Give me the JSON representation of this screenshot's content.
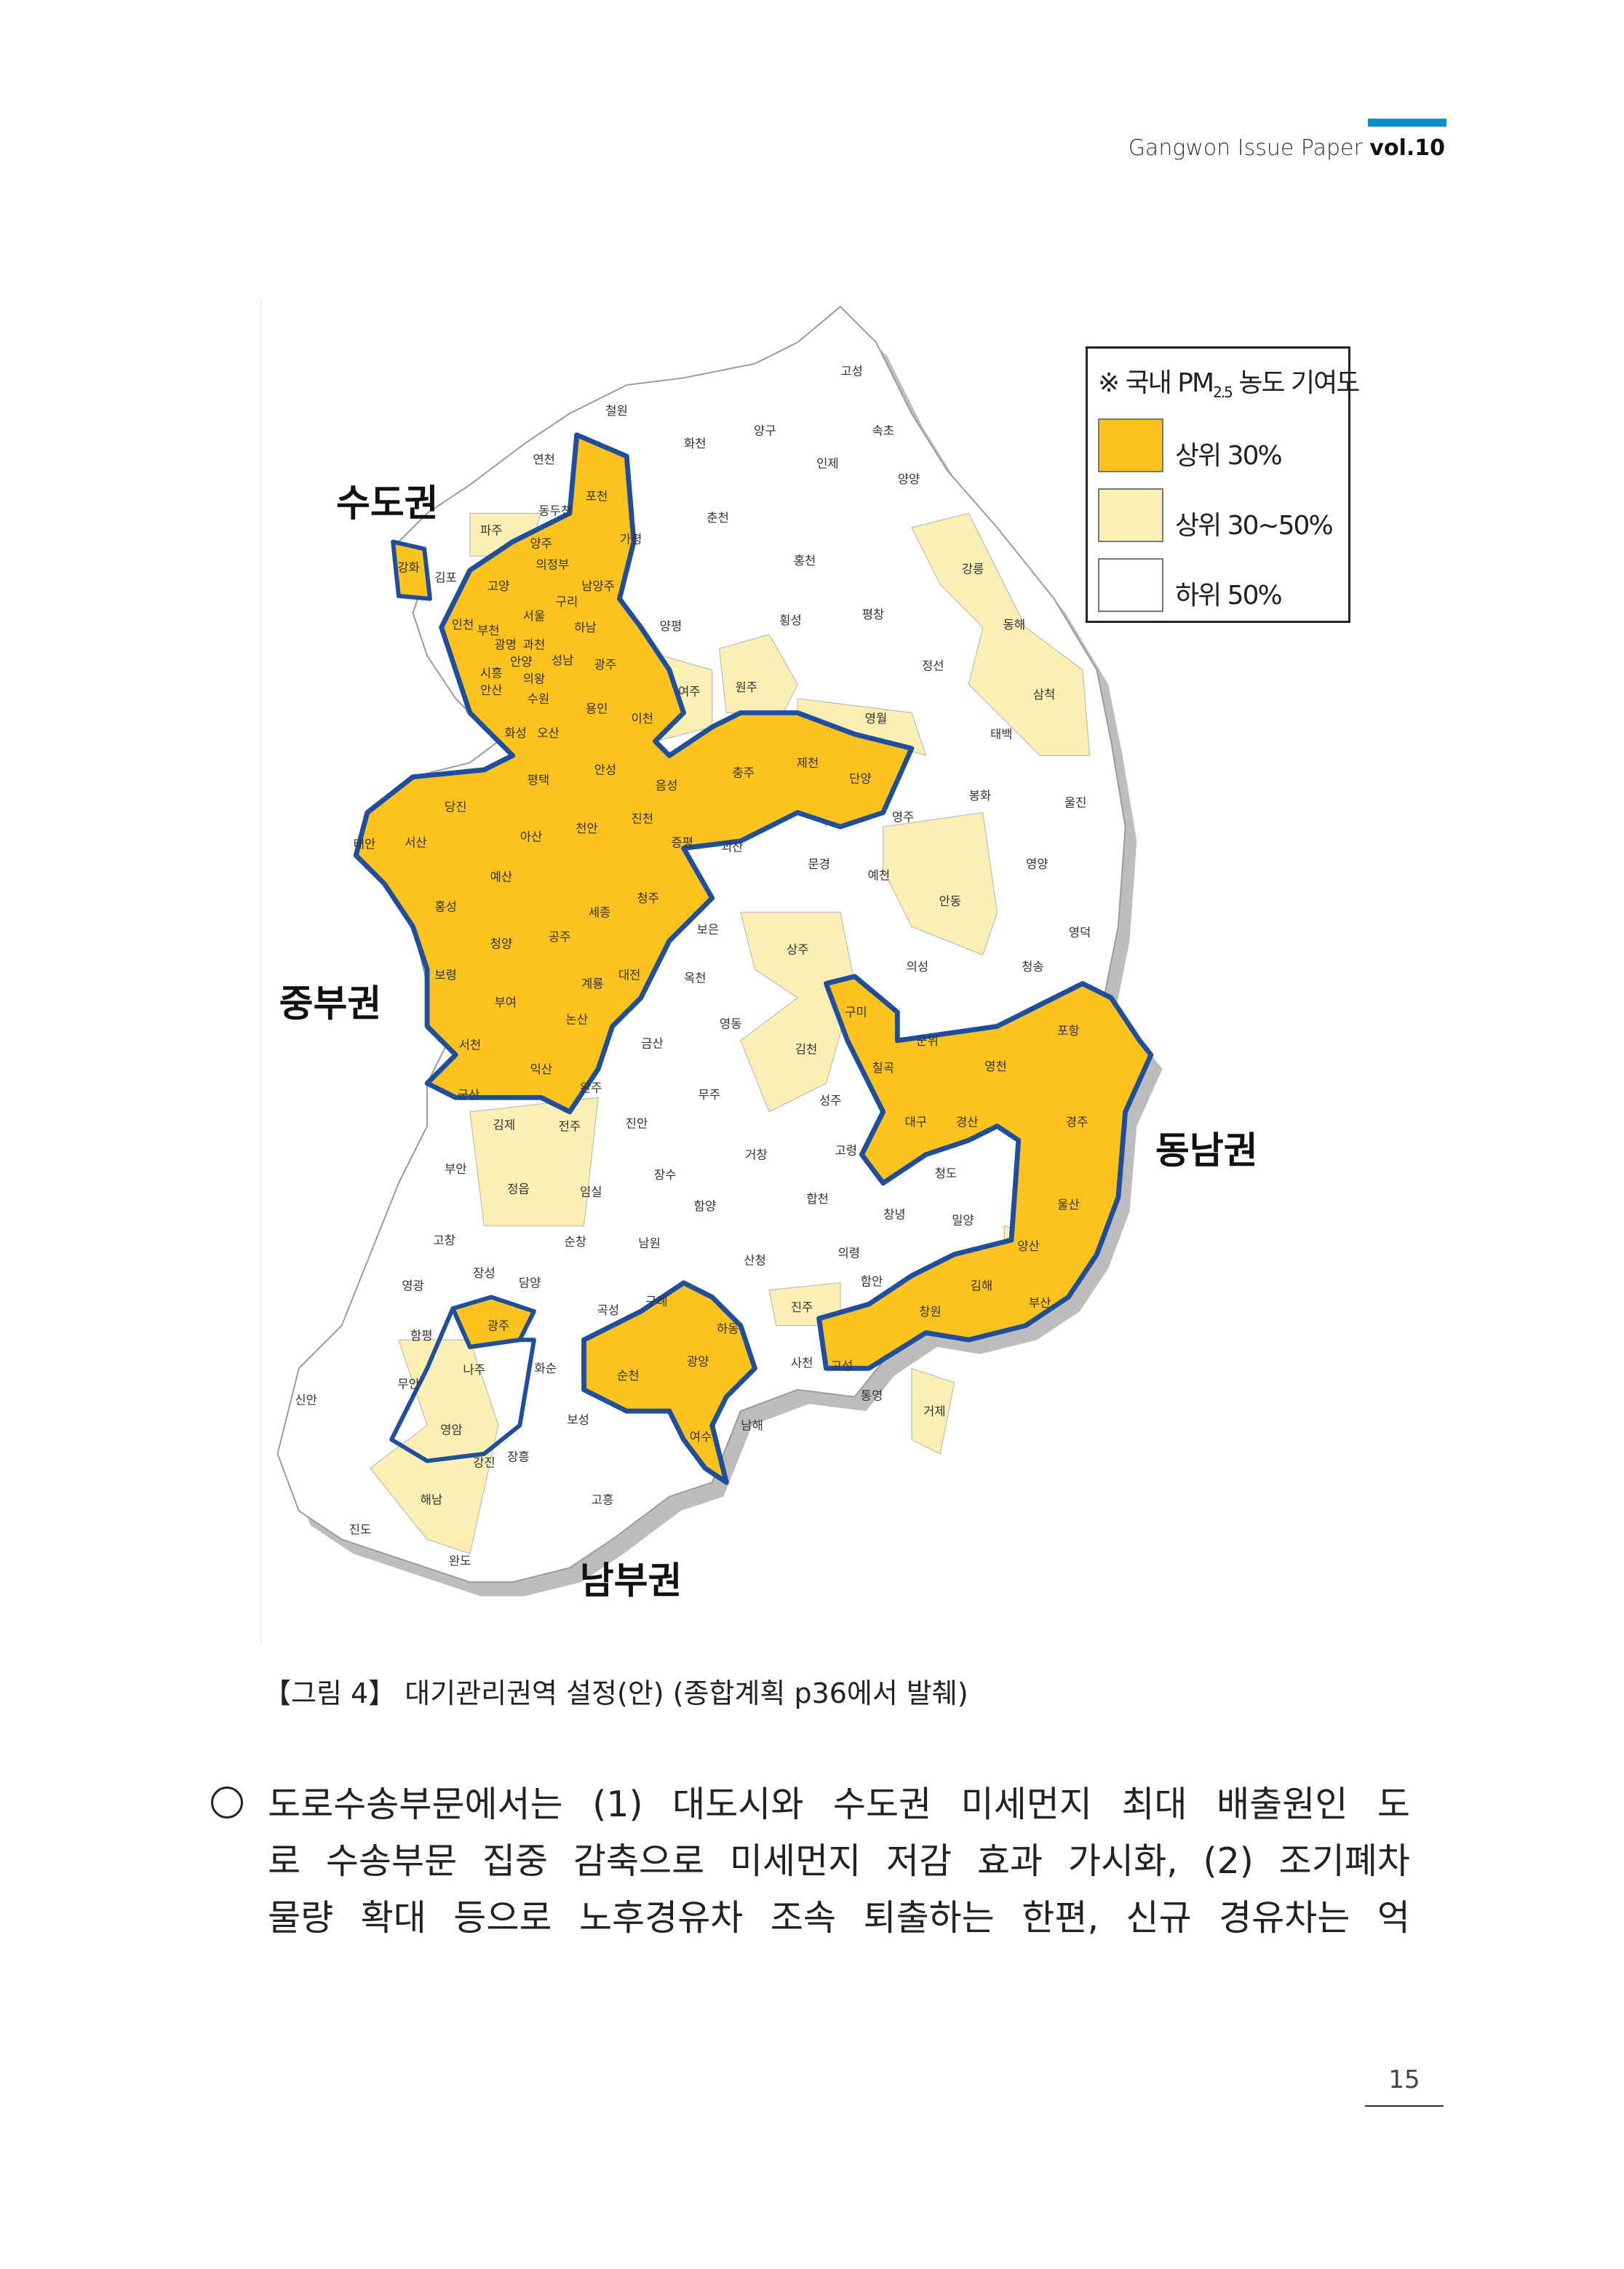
{
  "header": {
    "publication": "Gangwon Issue Paper",
    "volume": "vol.10",
    "accent_color": "#0a8fd3"
  },
  "map": {
    "legend": {
      "title_prefix": "※ 국내 PM",
      "title_sub": "2.5",
      "title_suffix": " 농도 기여도",
      "items": [
        {
          "label": "상위 30%",
          "color": "#fcc31e"
        },
        {
          "label": "상위 30~50%",
          "color": "#faf0b4"
        },
        {
          "label": "하위 50%",
          "color": "#ffffff"
        }
      ]
    },
    "zone_outline_color": "#1f4e9c",
    "regions": [
      "수도권",
      "중부권",
      "동남권",
      "남부권"
    ],
    "city_labels": [
      "고성",
      "철원",
      "화천",
      "양구",
      "속초",
      "연천",
      "인제",
      "양양",
      "포천",
      "파주",
      "동두천",
      "양주",
      "가평",
      "춘천",
      "강화",
      "김포",
      "의정부",
      "고양",
      "남양주",
      "홍천",
      "강릉",
      "서울",
      "구리",
      "인천",
      "부천",
      "하남",
      "양평",
      "횡성",
      "평창",
      "동해",
      "광명",
      "과천",
      "성남",
      "광주",
      "안양",
      "의왕",
      "시흥",
      "안산",
      "정선",
      "수원",
      "용인",
      "이천",
      "여주",
      "원주",
      "영월",
      "삼척",
      "화성",
      "오산",
      "태백",
      "안성",
      "평택",
      "음성",
      "충주",
      "제천",
      "단양",
      "봉화",
      "울진",
      "당진",
      "진천",
      "영주",
      "태안",
      "서산",
      "아산",
      "천안",
      "괴산",
      "증평",
      "문경",
      "예천",
      "영양",
      "예산",
      "청주",
      "안동",
      "홍성",
      "세종",
      "공주",
      "보은",
      "영덕",
      "상주",
      "청양",
      "의성",
      "청송",
      "보령",
      "대전",
      "옥천",
      "계룡",
      "부여",
      "논산",
      "영동",
      "구미",
      "군위",
      "포항",
      "금산",
      "김천",
      "서천",
      "익산",
      "칠곡",
      "영천",
      "완주",
      "무주",
      "성주",
      "군산",
      "대구",
      "경산",
      "경주",
      "김제",
      "전주",
      "진안",
      "고령",
      "거창",
      "청도",
      "부안",
      "장수",
      "정읍",
      "임실",
      "함양",
      "합천",
      "창녕",
      "밀양",
      "울산",
      "고창",
      "순창",
      "남원",
      "의령",
      "양산",
      "산청",
      "장성",
      "담양",
      "함안",
      "영광",
      "곡성",
      "구례",
      "창원",
      "김해",
      "부산",
      "진주",
      "함평",
      "광주",
      "하동",
      "나주",
      "화순",
      "무안",
      "순천",
      "광양",
      "사천",
      "고성",
      "통영",
      "신안",
      "보성",
      "여수",
      "남해",
      "거제",
      "영암",
      "강진",
      "장흥",
      "해남",
      "고흥",
      "진도",
      "완도"
    ]
  },
  "caption": "【그림 4】 대기관리권역 설정(안) (종합계획 p36에서 발췌)",
  "body": {
    "lines": [
      "도로수송부문에서는 (1) 대도시와 수도권 미세먼지 최대 배출원인 도",
      "로 수송부문 집중 감축으로 미세먼지 저감 효과 가시화, (2) 조기폐차",
      "물량 확대 등으로 노후경유차 조속 퇴출하는 한편, 신규 경유차는 억"
    ]
  },
  "page_number": "15"
}
